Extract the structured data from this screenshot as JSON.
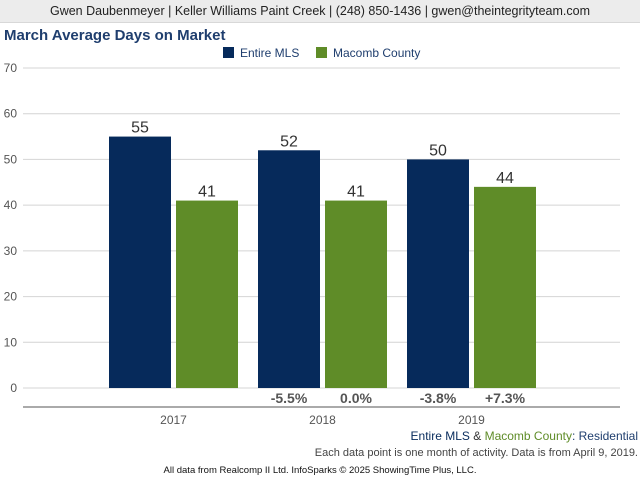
{
  "header": {
    "contact_line": "Gwen Daubenmeyer | Keller Williams Paint Creek | (248) 850-1436 | gwen@theintegrityteam.com"
  },
  "chart_data": {
    "type": "bar",
    "title": "March Average Days on Market",
    "categories": [
      "2017",
      "2018",
      "2019"
    ],
    "series": [
      {
        "name": "Entire MLS",
        "color": "#062a5b",
        "values": [
          55,
          52,
          50
        ],
        "changes": [
          "",
          "-5.5%",
          "-3.8%"
        ]
      },
      {
        "name": "Macomb County",
        "color": "#5f8c28",
        "values": [
          41,
          41,
          44
        ],
        "changes": [
          "",
          "0.0%",
          "+7.3%"
        ]
      }
    ],
    "yticks": [
      0,
      10,
      20,
      30,
      40,
      50,
      60,
      70
    ],
    "ylim": [
      0,
      70
    ],
    "grid": true,
    "legend_position": "top-center"
  },
  "footer": {
    "subtitle_part1": "Entire MLS",
    "subtitle_amp": " & ",
    "subtitle_part2": "Macomb County",
    "subtitle_part3": ": Residential",
    "note": "Each data point is one month of activity. Data is from April 9, 2019.",
    "copyright": "All data from Realcomp II Ltd. InfoSparks © 2025 ShowingTime Plus, LLC."
  }
}
